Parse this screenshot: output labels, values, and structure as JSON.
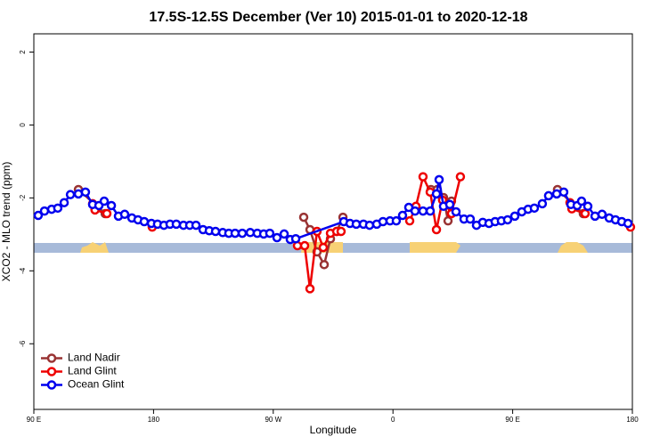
{
  "chart_data": {
    "type": "line",
    "title": "17.5S-12.5S December (Ver 10)   2015-01-01 to 2020-12-18",
    "x_label": "Longitude",
    "y_label": "XCO2 - MLO trend (ppm)",
    "xlim": [
      90,
      540
    ],
    "ylim": [
      -7.8,
      2.5
    ],
    "xticks": [
      {
        "value": 90,
        "label": "90 E"
      },
      180,
      {
        "value": 270,
        "label": "90 W"
      },
      {
        "value": 360,
        "label": "0"
      },
      {
        "value": 450,
        "label": "90 E"
      },
      {
        "value": 540,
        "label": "180"
      }
    ],
    "yticks": [
      -6,
      -4,
      -2,
      0,
      2
    ],
    "legend": "bottom-left",
    "series": [
      {
        "name": "Land Nadir",
        "color": "#993333",
        "x": [
          123.5,
          143.6,
          200,
          292.9,
          297.6,
          302.9,
          308.3,
          313,
          317.7,
          322.4,
          350,
          388.6,
          393.3,
          398,
          401.4,
          404,
          450,
          483.7,
          503.1
        ],
        "values": [
          -1.77,
          -2.43,
          null,
          -2.53,
          -2.87,
          -3.48,
          -3.83,
          -3.12,
          -2.92,
          -2.53,
          null,
          -1.77,
          -1.77,
          -1.99,
          -2.63,
          -2.09,
          null,
          -1.77,
          -2.43
        ]
      },
      {
        "name": "Land Glint",
        "color": "#ee0000",
        "x": [
          134.2,
          136,
          144.9,
          160,
          179,
          230,
          288.2,
          293.6,
          297.6,
          302.9,
          307.6,
          313,
          317.7,
          321,
          350,
          372.6,
          377.3,
          382.6,
          388,
          392.7,
          397.3,
          404,
          410.7,
          450,
          493.1,
          494.5,
          504.5,
          520,
          538.6
        ],
        "values": [
          -2.16,
          -2.33,
          -2.43,
          null,
          -2.8,
          null,
          -3.31,
          -3.31,
          -4.49,
          -2.92,
          -3.36,
          -2.97,
          -2.92,
          -2.92,
          null,
          -2.63,
          -2.23,
          -1.42,
          -1.84,
          -2.87,
          -2.06,
          -2.43,
          -1.42,
          null,
          -2.13,
          -2.3,
          -2.43,
          null,
          -2.8
        ]
      },
      {
        "name": "Ocean Glint",
        "color": "#0000ee",
        "x": [
          93.3,
          98,
          103.4,
          108,
          112.8,
          117.5,
          123.5,
          128.8,
          134.2,
          138.9,
          142.9,
          148.3,
          153.6,
          158.3,
          163.7,
          168.3,
          173,
          178.4,
          183,
          187.8,
          192.4,
          197.1,
          202.5,
          207.2,
          211.9,
          217.2,
          221.9,
          226.6,
          232,
          236.6,
          241.3,
          246.7,
          252.7,
          258,
          262.8,
          267.4,
          272.8,
          278.2,
          282.8,
          286.9,
          323,
          327.7,
          332.4,
          337.8,
          342.4,
          347.8,
          352.5,
          357.8,
          362.5,
          367.2,
          371.9,
          376.6,
          382.6,
          388,
          392.7,
          394.7,
          398,
          402.7,
          407.4,
          413.4,
          418.1,
          422.8,
          427.5,
          432.2,
          436.8,
          441.5,
          446.2,
          451.6,
          456.9,
          461.6,
          466.3,
          472.3,
          477,
          483.1,
          488.4,
          493.8,
          498.5,
          501.8,
          506.5,
          511.9,
          517.2,
          522.6,
          527.3,
          532,
          536.7
        ],
        "values": [
          -2.48,
          -2.36,
          -2.31,
          -2.28,
          -2.13,
          -1.91,
          -1.89,
          -1.84,
          -2.18,
          -2.21,
          -2.09,
          -2.21,
          -2.5,
          -2.45,
          -2.55,
          -2.6,
          -2.65,
          -2.7,
          -2.72,
          -2.75,
          -2.72,
          -2.72,
          -2.75,
          -2.75,
          -2.75,
          -2.87,
          -2.9,
          -2.92,
          -2.95,
          -2.97,
          -2.97,
          -2.97,
          -2.95,
          -2.97,
          -2.99,
          -2.97,
          -3.09,
          -2.99,
          -3.14,
          -3.12,
          -2.65,
          -2.7,
          -2.72,
          -2.72,
          -2.75,
          -2.72,
          -2.65,
          -2.63,
          -2.63,
          -2.48,
          -2.26,
          -2.36,
          -2.36,
          -2.36,
          -1.89,
          -1.5,
          -2.23,
          -2.18,
          -2.38,
          -2.58,
          -2.58,
          -2.75,
          -2.67,
          -2.7,
          -2.65,
          -2.63,
          -2.6,
          -2.5,
          -2.38,
          -2.31,
          -2.28,
          -2.16,
          -1.94,
          -1.89,
          -1.84,
          -2.18,
          -2.21,
          -2.09,
          -2.23,
          -2.5,
          -2.45,
          -2.55,
          -2.6,
          -2.65,
          -2.7
        ]
      }
    ]
  }
}
